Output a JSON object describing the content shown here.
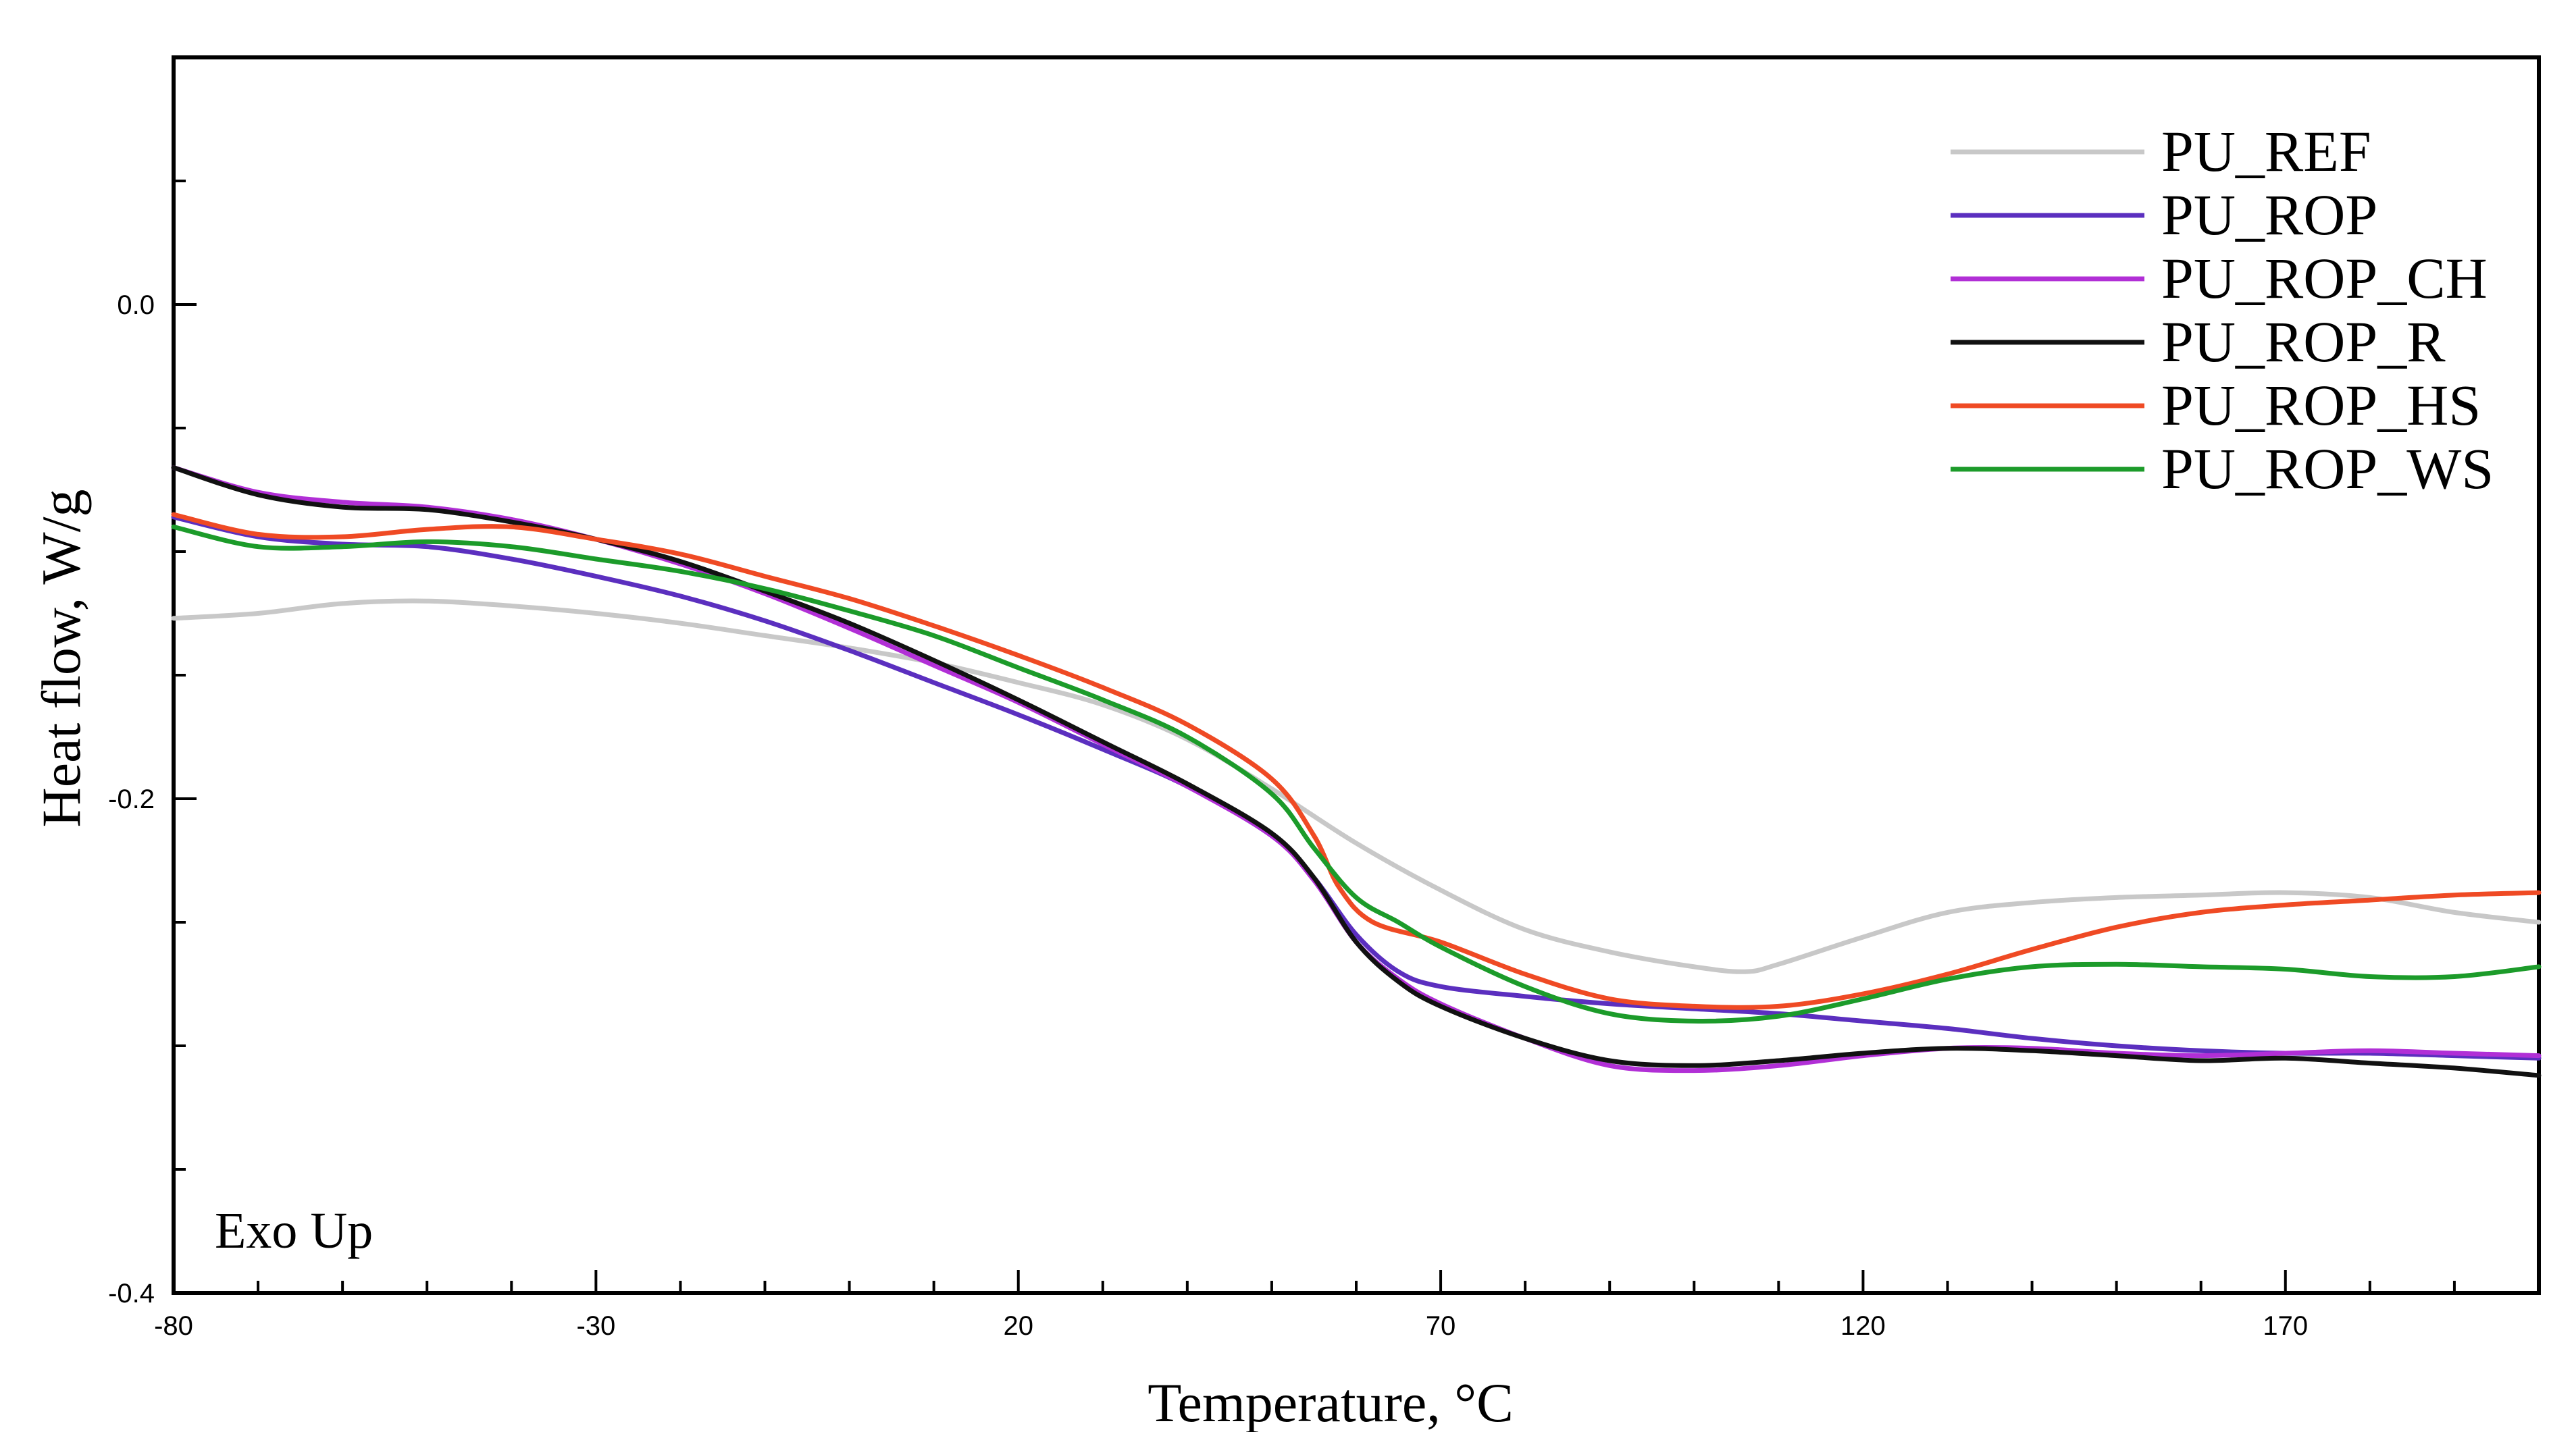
{
  "chart_data": {
    "type": "line",
    "title": "",
    "xlabel": "Temperature, °C",
    "ylabel": "Heat flow, W/g",
    "xlim": [
      -80,
      200
    ],
    "ylim": [
      -0.4,
      0.1
    ],
    "xticks": [
      -80,
      -30,
      20,
      70,
      120,
      170
    ],
    "xtick_labels": [
      "-80",
      "-30",
      "20",
      "70",
      "120",
      "170"
    ],
    "yticks": [
      0.0,
      -0.2,
      -0.4
    ],
    "ytick_labels": [
      "0.0",
      "-0.2",
      "-0.4"
    ],
    "grid": false,
    "legend_position": "top-right",
    "annotation": "Exo Up",
    "series": [
      {
        "name": "PU_REF",
        "color": "#c8c8c8",
        "x": [
          -80,
          -70,
          -60,
          -50,
          -40,
          -30,
          -20,
          -10,
          0,
          10,
          20,
          30,
          40,
          50,
          60,
          70,
          80,
          90,
          100,
          106,
          110,
          120,
          130,
          140,
          150,
          160,
          170,
          180,
          190,
          200
        ],
        "y": [
          -0.127,
          -0.125,
          -0.121,
          -0.12,
          -0.122,
          -0.125,
          -0.129,
          -0.134,
          -0.139,
          -0.145,
          -0.153,
          -0.162,
          -0.176,
          -0.196,
          -0.218,
          -0.237,
          -0.253,
          -0.262,
          -0.268,
          -0.27,
          -0.267,
          -0.256,
          -0.246,
          -0.242,
          -0.24,
          -0.239,
          -0.238,
          -0.24,
          -0.246,
          -0.25
        ]
      },
      {
        "name": "PU_ROP",
        "color": "#5b2fbf",
        "x": [
          -80,
          -70,
          -60,
          -50,
          -40,
          -30,
          -20,
          -10,
          0,
          10,
          20,
          30,
          40,
          50,
          55,
          60,
          65,
          70,
          80,
          90,
          100,
          110,
          120,
          130,
          140,
          150,
          160,
          170,
          180,
          190,
          200
        ],
        "y": [
          -0.086,
          -0.094,
          -0.097,
          -0.098,
          -0.103,
          -0.11,
          -0.118,
          -0.128,
          -0.14,
          -0.153,
          -0.166,
          -0.18,
          -0.195,
          -0.215,
          -0.232,
          -0.255,
          -0.27,
          -0.276,
          -0.28,
          -0.283,
          -0.285,
          -0.287,
          -0.29,
          -0.293,
          -0.297,
          -0.3,
          -0.302,
          -0.303,
          -0.303,
          -0.304,
          -0.305
        ]
      },
      {
        "name": "PU_ROP_CH",
        "color": "#b12fd6",
        "x": [
          -80,
          -70,
          -60,
          -50,
          -40,
          -30,
          -20,
          -10,
          0,
          10,
          20,
          30,
          40,
          50,
          55,
          60,
          65,
          70,
          80,
          90,
          100,
          110,
          120,
          130,
          140,
          150,
          160,
          170,
          180,
          190,
          200
        ],
        "y": [
          -0.066,
          -0.076,
          -0.08,
          -0.082,
          -0.087,
          -0.095,
          -0.105,
          -0.117,
          -0.131,
          -0.146,
          -0.161,
          -0.178,
          -0.195,
          -0.215,
          -0.233,
          -0.258,
          -0.273,
          -0.283,
          -0.297,
          -0.308,
          -0.31,
          -0.308,
          -0.304,
          -0.301,
          -0.301,
          -0.303,
          -0.304,
          -0.303,
          -0.302,
          -0.303,
          -0.304
        ]
      },
      {
        "name": "PU_ROP_R",
        "color": "#111111",
        "x": [
          -80,
          -70,
          -60,
          -50,
          -40,
          -30,
          -20,
          -10,
          0,
          10,
          20,
          30,
          40,
          50,
          55,
          60,
          65,
          70,
          80,
          90,
          100,
          110,
          120,
          130,
          140,
          150,
          160,
          170,
          180,
          190,
          200
        ],
        "y": [
          -0.066,
          -0.077,
          -0.082,
          -0.083,
          -0.088,
          -0.095,
          -0.104,
          -0.116,
          -0.129,
          -0.144,
          -0.16,
          -0.177,
          -0.194,
          -0.214,
          -0.232,
          -0.258,
          -0.274,
          -0.284,
          -0.297,
          -0.306,
          -0.308,
          -0.306,
          -0.303,
          -0.301,
          -0.302,
          -0.304,
          -0.306,
          -0.305,
          -0.307,
          -0.309,
          -0.312
        ]
      },
      {
        "name": "PU_ROP_HS",
        "color": "#ef4a24",
        "x": [
          -80,
          -70,
          -60,
          -50,
          -40,
          -30,
          -20,
          -10,
          0,
          10,
          20,
          30,
          40,
          50,
          55,
          58,
          62,
          70,
          80,
          90,
          100,
          110,
          120,
          130,
          140,
          150,
          160,
          170,
          180,
          190,
          200
        ],
        "y": [
          -0.085,
          -0.093,
          -0.094,
          -0.091,
          -0.09,
          -0.095,
          -0.101,
          -0.11,
          -0.119,
          -0.13,
          -0.142,
          -0.155,
          -0.17,
          -0.192,
          -0.215,
          -0.236,
          -0.25,
          -0.258,
          -0.271,
          -0.281,
          -0.284,
          -0.284,
          -0.279,
          -0.271,
          -0.261,
          -0.252,
          -0.246,
          -0.243,
          -0.241,
          -0.239,
          -0.238
        ]
      },
      {
        "name": "PU_ROP_WS",
        "color": "#1c9b2a",
        "x": [
          -80,
          -70,
          -60,
          -50,
          -40,
          -30,
          -20,
          -10,
          0,
          10,
          20,
          30,
          40,
          50,
          55,
          60,
          65,
          70,
          80,
          90,
          100,
          110,
          120,
          130,
          140,
          150,
          160,
          170,
          180,
          190,
          200
        ],
        "y": [
          -0.09,
          -0.098,
          -0.098,
          -0.096,
          -0.098,
          -0.103,
          -0.108,
          -0.115,
          -0.124,
          -0.134,
          -0.147,
          -0.16,
          -0.175,
          -0.198,
          -0.22,
          -0.24,
          -0.25,
          -0.26,
          -0.276,
          -0.287,
          -0.29,
          -0.288,
          -0.281,
          -0.273,
          -0.268,
          -0.267,
          -0.268,
          -0.269,
          -0.272,
          -0.272,
          -0.268
        ]
      }
    ]
  }
}
